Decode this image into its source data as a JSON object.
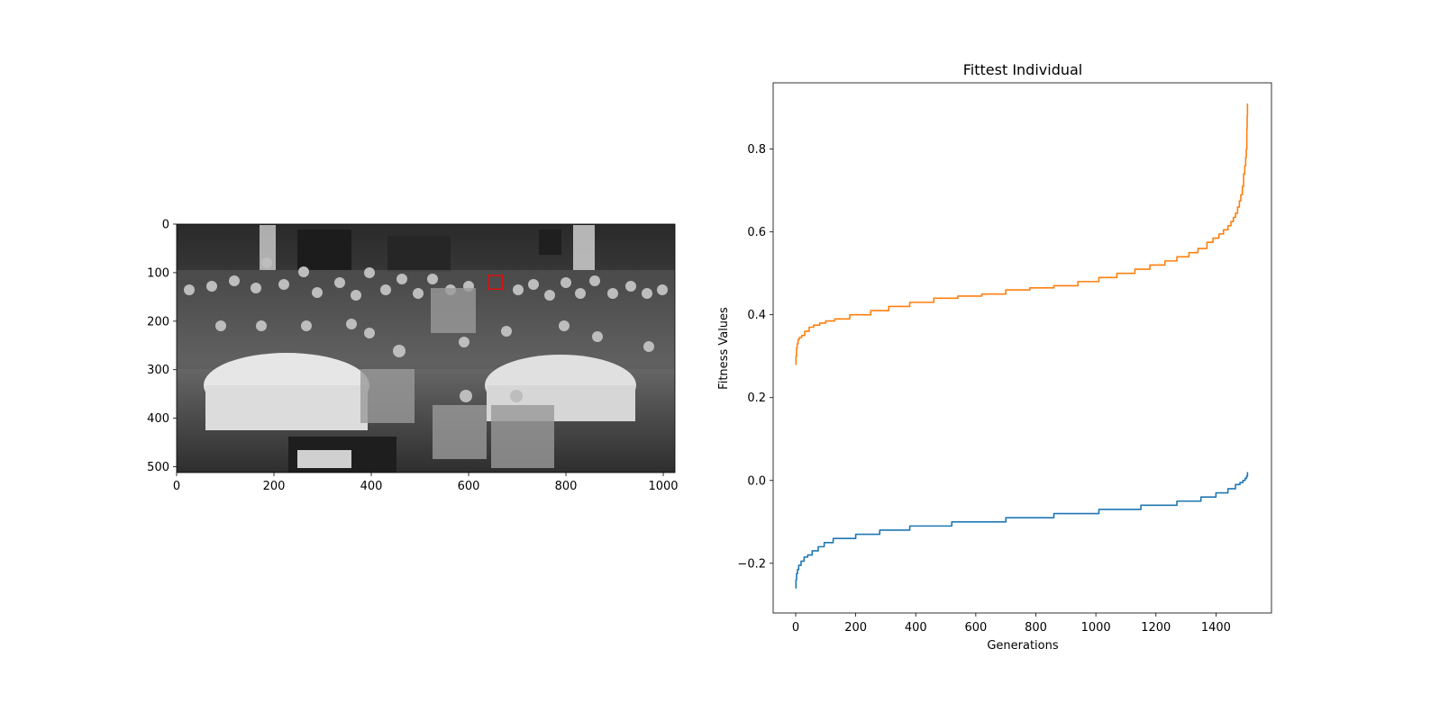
{
  "chart_data": [
    {
      "type": "image",
      "title": "",
      "xlabel": "",
      "ylabel": "",
      "xlim": [
        0,
        1024
      ],
      "ylim": [
        512,
        0
      ],
      "xticks": [
        0,
        200,
        400,
        600,
        800,
        1000
      ],
      "yticks": [
        0,
        100,
        200,
        300,
        400,
        500
      ],
      "image": {
        "description_name": "grayscale-group-photo",
        "colormap": "gray"
      },
      "highlight_box": {
        "x": [
          640,
          670
        ],
        "y": [
          106,
          134
        ],
        "color": "#ff0000"
      }
    },
    {
      "type": "line",
      "title": "Fittest Individual",
      "xlabel": "Generations",
      "ylabel": "Fitness Values",
      "xlim": [
        -75,
        1585
      ],
      "ylim": [
        -0.32,
        0.96
      ],
      "xticks": [
        0,
        200,
        400,
        600,
        800,
        1000,
        1200,
        1400
      ],
      "yticks": [
        -0.2,
        0.0,
        0.2,
        0.4,
        0.6,
        0.8
      ],
      "grid": false,
      "series": [
        {
          "color": "#ff7f0e",
          "x": [
            0,
            1,
            3,
            5,
            8,
            12,
            20,
            30,
            45,
            60,
            80,
            100,
            130,
            180,
            250,
            310,
            380,
            460,
            540,
            620,
            700,
            780,
            860,
            940,
            1010,
            1070,
            1130,
            1180,
            1230,
            1270,
            1310,
            1340,
            1370,
            1390,
            1410,
            1425,
            1440,
            1450,
            1458,
            1465,
            1472,
            1478,
            1483,
            1488,
            1492,
            1496,
            1499,
            1501,
            1503,
            1504,
            1505
          ],
          "y": [
            0.28,
            0.3,
            0.32,
            0.33,
            0.34,
            0.345,
            0.35,
            0.36,
            0.37,
            0.375,
            0.38,
            0.385,
            0.39,
            0.4,
            0.41,
            0.42,
            0.43,
            0.44,
            0.445,
            0.45,
            0.46,
            0.465,
            0.47,
            0.48,
            0.49,
            0.5,
            0.51,
            0.52,
            0.53,
            0.54,
            0.55,
            0.56,
            0.575,
            0.585,
            0.595,
            0.605,
            0.615,
            0.625,
            0.635,
            0.645,
            0.66,
            0.675,
            0.69,
            0.71,
            0.74,
            0.76,
            0.78,
            0.8,
            0.85,
            0.88,
            0.91
          ]
        },
        {
          "color": "#1f77b4",
          "x": [
            0,
            1,
            3,
            6,
            10,
            18,
            28,
            40,
            55,
            75,
            95,
            125,
            200,
            280,
            380,
            520,
            700,
            860,
            1010,
            1150,
            1270,
            1350,
            1400,
            1440,
            1465,
            1480,
            1490,
            1497,
            1502,
            1505
          ],
          "y": [
            -0.26,
            -0.24,
            -0.225,
            -0.215,
            -0.205,
            -0.195,
            -0.185,
            -0.18,
            -0.17,
            -0.16,
            -0.15,
            -0.14,
            -0.13,
            -0.12,
            -0.11,
            -0.1,
            -0.09,
            -0.08,
            -0.07,
            -0.06,
            -0.05,
            -0.04,
            -0.03,
            -0.02,
            -0.01,
            -0.005,
            0.0,
            0.005,
            0.01,
            0.02
          ]
        }
      ]
    }
  ]
}
